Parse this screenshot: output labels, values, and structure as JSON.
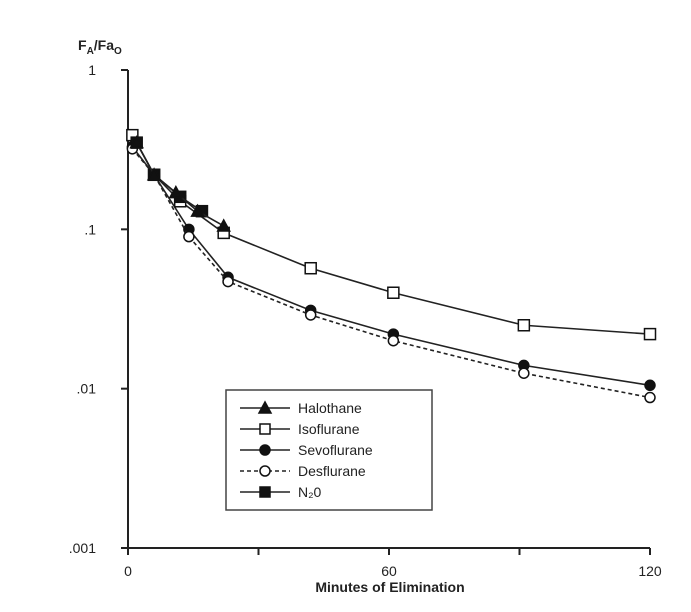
{
  "chart_data": {
    "type": "line",
    "title": "",
    "ylabel_main": "F",
    "ylabel_sub1": "A",
    "ylabel_mid": "/Fa",
    "ylabel_sub2": "O",
    "xlabel": "Minutes of Elimination",
    "yscale": "log",
    "ylim": [
      0.001,
      1
    ],
    "xlim": [
      0,
      120
    ],
    "x_ticks": [
      0,
      30,
      60,
      90,
      120
    ],
    "x_tick_labels": [
      "0",
      "",
      "60",
      "",
      "120"
    ],
    "y_ticks": [
      1,
      0.1,
      0.01,
      0.001
    ],
    "y_tick_labels": [
      "1",
      ".1",
      ".01",
      ".001"
    ],
    "legend_position": "lower-center",
    "grid": false,
    "series": [
      {
        "name": "Halothane",
        "marker": "triangle-filled",
        "dash": "solid",
        "x": [
          2,
          6,
          11,
          16,
          22
        ],
        "y": [
          0.35,
          0.22,
          0.17,
          0.13,
          0.105
        ]
      },
      {
        "name": "Isoflurane",
        "marker": "square-open",
        "dash": "solid",
        "x": [
          1,
          6,
          12,
          22,
          42,
          61,
          91,
          120
        ],
        "y": [
          0.39,
          0.22,
          0.15,
          0.095,
          0.057,
          0.04,
          0.025,
          0.022
        ]
      },
      {
        "name": "Sevoflurane",
        "marker": "circle-filled",
        "dash": "solid",
        "x": [
          1,
          6,
          14,
          23,
          42,
          61,
          91,
          120
        ],
        "y": [
          0.33,
          0.22,
          0.1,
          0.05,
          0.031,
          0.022,
          0.014,
          0.0105
        ]
      },
      {
        "name": "Desflurane",
        "marker": "circle-open",
        "dash": "dashed",
        "x": [
          1,
          6,
          14,
          23,
          42,
          61,
          91,
          120
        ],
        "y": [
          0.32,
          0.22,
          0.09,
          0.047,
          0.029,
          0.02,
          0.0125,
          0.0088
        ]
      },
      {
        "name": "N₂0",
        "marker": "square-filled",
        "dash": "solid",
        "x": [
          2,
          6,
          12,
          17
        ],
        "y": [
          0.35,
          0.22,
          0.16,
          0.13
        ]
      }
    ]
  }
}
